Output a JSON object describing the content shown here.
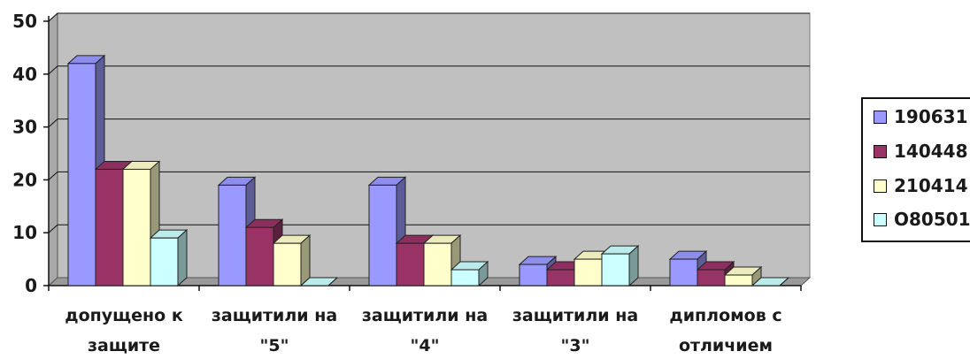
{
  "chart_data": {
    "type": "bar",
    "style": "3d-clustered",
    "categories": [
      [
        "допущено к",
        "защите"
      ],
      [
        "защитили на",
        "\"5\""
      ],
      [
        "защитили на",
        "\"4\""
      ],
      [
        "защитили на",
        "\"3\""
      ],
      [
        "дипломов с",
        "отличием"
      ]
    ],
    "series": [
      {
        "name": "190631",
        "color": "#9999ff",
        "values": [
          42,
          19,
          19,
          4,
          5
        ]
      },
      {
        "name": "140448",
        "color": "#993366",
        "values": [
          22,
          11,
          8,
          3,
          3
        ]
      },
      {
        "name": "210414",
        "color": "#ffffcc",
        "values": [
          22,
          8,
          8,
          5,
          2
        ]
      },
      {
        "name": "О80501",
        "color": "#ccffff",
        "values": [
          9,
          0,
          3,
          6,
          0
        ]
      }
    ],
    "ylim": [
      0,
      50
    ],
    "yticks": [
      "0",
      "10",
      "20",
      "30",
      "40",
      "50"
    ],
    "grid": true,
    "plot_background": "#c0c0c0",
    "legend_position": "right"
  }
}
